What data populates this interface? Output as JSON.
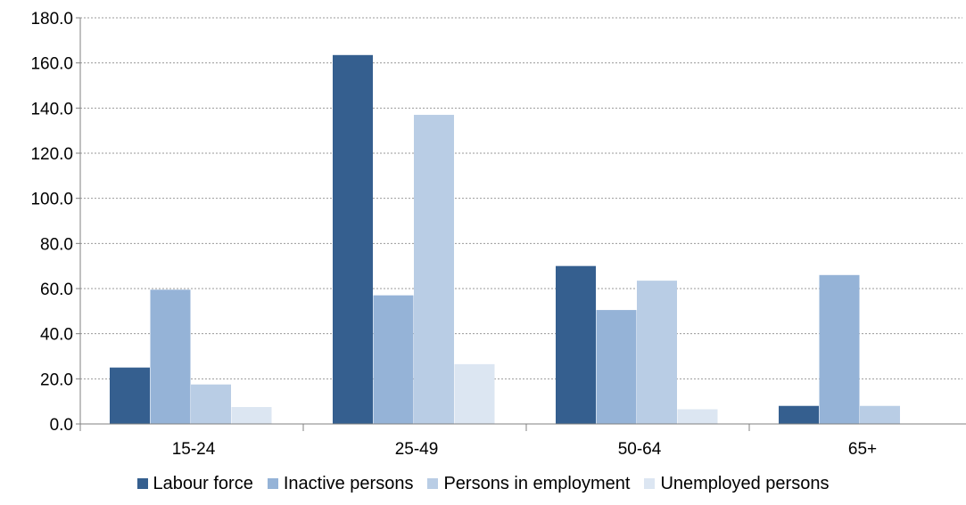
{
  "chart_data": {
    "type": "bar",
    "categories": [
      "15-24",
      "25-49",
      "50-64",
      "65+"
    ],
    "series": [
      {
        "name": "Labour force",
        "color": "#355f8f",
        "values": [
          25.0,
          163.5,
          70.0,
          8.0
        ]
      },
      {
        "name": "Inactive persons",
        "color": "#95b3d7",
        "values": [
          59.5,
          57.0,
          50.5,
          66.0
        ]
      },
      {
        "name": "Persons in employment",
        "color": "#b9cde5",
        "values": [
          17.5,
          137.0,
          63.5,
          8.0
        ]
      },
      {
        "name": "Unemployed persons",
        "color": "#dce6f2",
        "values": [
          7.5,
          26.5,
          6.5,
          0.0
        ]
      }
    ],
    "ylim": [
      0,
      180
    ],
    "yticks": [
      "0.0",
      "20.0",
      "40.0",
      "60.0",
      "80.0",
      "100.0",
      "120.0",
      "140.0",
      "160.0",
      "180.0"
    ],
    "grid": true,
    "legend_position": "bottom",
    "title": "",
    "xlabel": "",
    "ylabel": ""
  }
}
